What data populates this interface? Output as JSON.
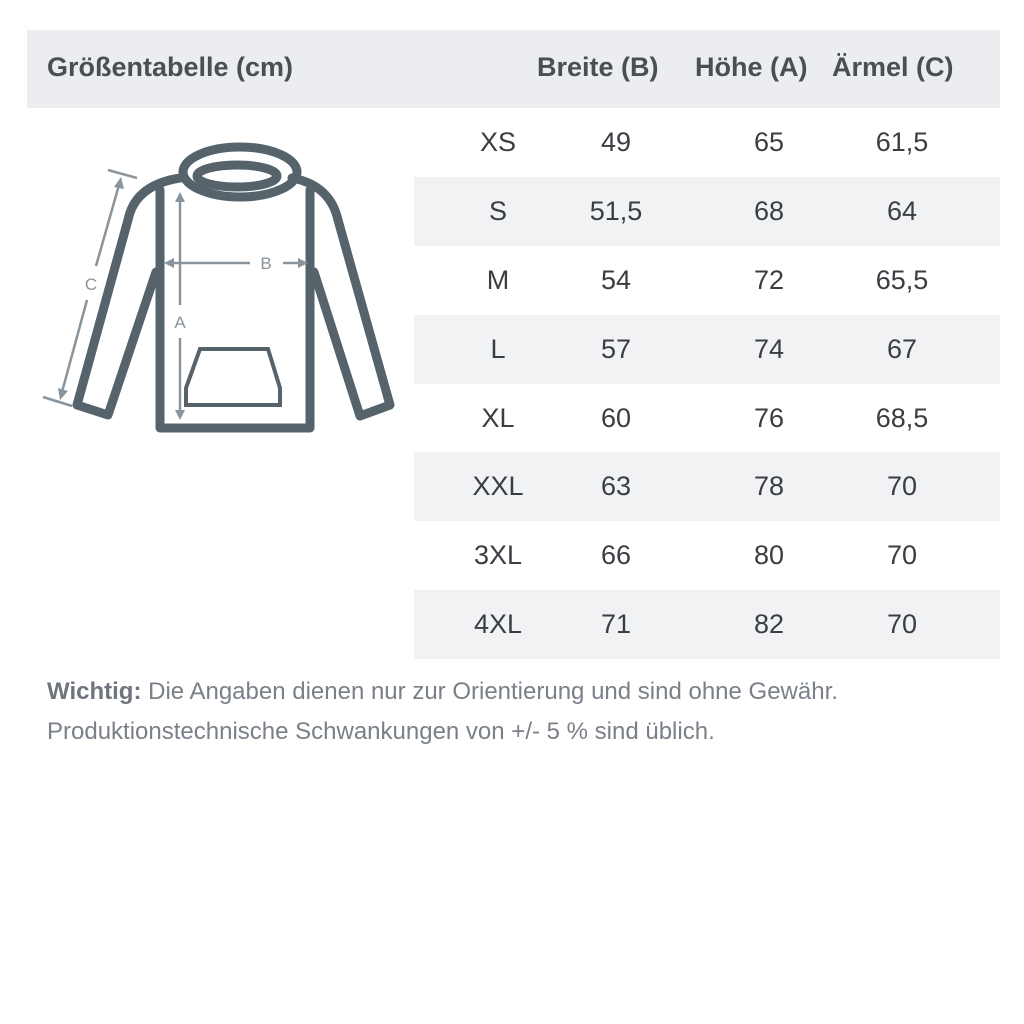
{
  "header": {
    "title": "Größentabelle (cm)",
    "columns": [
      "Breite (B)",
      "Höhe (A)",
      "Ärmel (C)"
    ]
  },
  "diagram": {
    "icon": "hoodie-measurement-diagram",
    "labels": {
      "a": "A",
      "b": "B",
      "c": "C"
    },
    "outline_color": "#56636b",
    "arrow_color": "#8a949c"
  },
  "rows": [
    {
      "size": "XS",
      "b": "49",
      "a": "65",
      "c": "61,5"
    },
    {
      "size": "S",
      "b": "51,5",
      "a": "68",
      "c": "64"
    },
    {
      "size": "M",
      "b": "54",
      "a": "72",
      "c": "65,5"
    },
    {
      "size": "L",
      "b": "57",
      "a": "74",
      "c": "67"
    },
    {
      "size": "XL",
      "b": "60",
      "a": "76",
      "c": "68,5"
    },
    {
      "size": "XXL",
      "b": "63",
      "a": "78",
      "c": "70"
    },
    {
      "size": "3XL",
      "b": "66",
      "a": "80",
      "c": "70"
    },
    {
      "size": "4XL",
      "b": "71",
      "a": "82",
      "c": "70"
    }
  ],
  "note": {
    "label": "Wichtig:",
    "line1": " Die Angaben dienen nur zur Orientierung und sind ohne Gewähr.",
    "line2": "Produktionstechnische Schwankungen von +/- 5 % sind üblich."
  }
}
